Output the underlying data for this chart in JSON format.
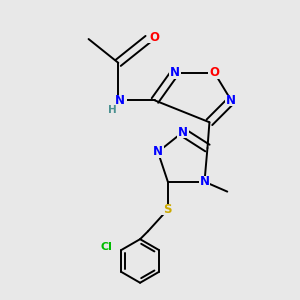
{
  "background_color": "#e8e8e8",
  "atom_colors": {
    "C": "#000000",
    "N": "#0000ff",
    "O": "#ff0000",
    "S": "#ccaa00",
    "Cl": "#00bb00",
    "H": "#4a9090"
  },
  "figure_size": [
    3.0,
    3.0
  ],
  "dpi": 100
}
